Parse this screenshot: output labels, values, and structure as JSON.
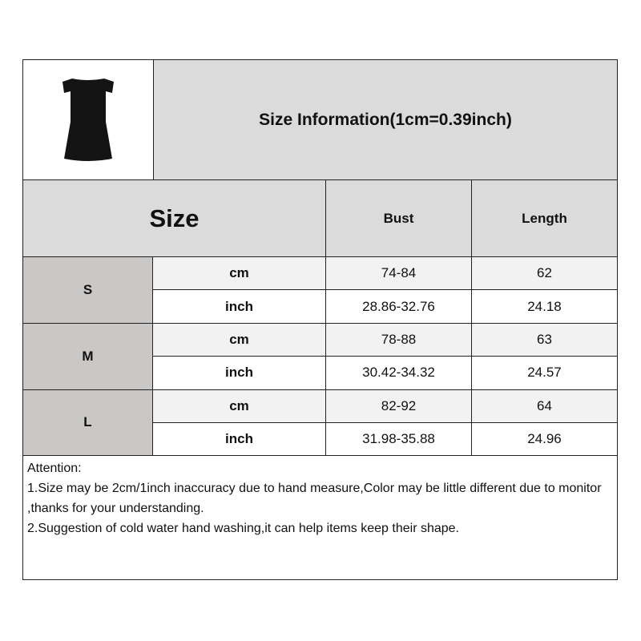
{
  "header": {
    "title": "Size Information(1cm=0.39inch)",
    "image": "black-off-shoulder-dress"
  },
  "table": {
    "size_label": "Size",
    "columns": [
      "Bust",
      "Length"
    ],
    "rows": [
      {
        "size": "S",
        "cm": {
          "unit": "cm",
          "bust": "74-84",
          "length": "62"
        },
        "inch": {
          "unit": "inch",
          "bust": "28.86-32.76",
          "length": "24.18"
        }
      },
      {
        "size": "M",
        "cm": {
          "unit": "cm",
          "bust": "78-88",
          "length": "63"
        },
        "inch": {
          "unit": "inch",
          "bust": "30.42-34.32",
          "length": "24.57"
        }
      },
      {
        "size": "L",
        "cm": {
          "unit": "cm",
          "bust": "82-92",
          "length": "64"
        },
        "inch": {
          "unit": "inch",
          "bust": "31.98-35.88",
          "length": "24.96"
        }
      }
    ]
  },
  "attention": {
    "title": "Attention:",
    "lines": [
      "1.Size may be 2cm/1inch inaccuracy due to hand measure,Color may be little different due to monitor ,thanks for your understanding.",
      "2.Suggestion of cold water hand washing,it can help items keep their shape."
    ]
  }
}
